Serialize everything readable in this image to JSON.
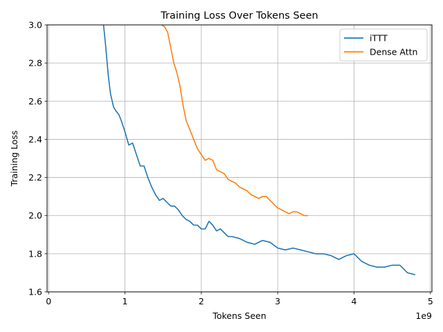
{
  "chart_data": {
    "type": "line",
    "title": "Training Loss Over Tokens Seen",
    "xlabel": "Tokens Seen",
    "ylabel": "Training Loss",
    "x_offset_label": "1e9",
    "xlim": [
      -0.02,
      5.02
    ],
    "ylim": [
      1.6,
      3.0
    ],
    "x_ticks": [
      0,
      1,
      2,
      3,
      4,
      5
    ],
    "x_tick_labels": [
      "0",
      "1",
      "2",
      "3",
      "4",
      "5"
    ],
    "y_ticks": [
      1.6,
      1.8,
      2.0,
      2.2,
      2.4,
      2.6,
      2.8,
      3.0
    ],
    "y_tick_labels": [
      "1.6",
      "1.8",
      "2.0",
      "2.2",
      "2.4",
      "2.6",
      "2.8",
      "3.0"
    ],
    "grid": true,
    "legend_position": "top-right",
    "series": [
      {
        "name": "iTTT",
        "color": "#1f77b4",
        "x": [
          0.72,
          0.75,
          0.78,
          0.81,
          0.85,
          0.88,
          0.92,
          0.95,
          1.0,
          1.05,
          1.1,
          1.15,
          1.2,
          1.25,
          1.3,
          1.35,
          1.4,
          1.45,
          1.5,
          1.55,
          1.6,
          1.65,
          1.7,
          1.75,
          1.8,
          1.85,
          1.9,
          1.95,
          2.0,
          2.05,
          2.1,
          2.15,
          2.2,
          2.25,
          2.3,
          2.35,
          2.4,
          2.5,
          2.6,
          2.7,
          2.8,
          2.9,
          3.0,
          3.1,
          3.2,
          3.3,
          3.4,
          3.5,
          3.6,
          3.7,
          3.8,
          3.9,
          4.0,
          4.1,
          4.2,
          4.3,
          4.4,
          4.5,
          4.6,
          4.7,
          4.8
        ],
        "y": [
          3.0,
          2.88,
          2.74,
          2.64,
          2.57,
          2.55,
          2.53,
          2.5,
          2.44,
          2.37,
          2.38,
          2.32,
          2.26,
          2.26,
          2.2,
          2.15,
          2.11,
          2.08,
          2.09,
          2.07,
          2.05,
          2.05,
          2.03,
          2.0,
          1.98,
          1.97,
          1.95,
          1.95,
          1.93,
          1.93,
          1.97,
          1.95,
          1.92,
          1.93,
          1.91,
          1.89,
          1.89,
          1.88,
          1.86,
          1.85,
          1.87,
          1.86,
          1.83,
          1.82,
          1.83,
          1.82,
          1.81,
          1.8,
          1.8,
          1.79,
          1.77,
          1.79,
          1.8,
          1.76,
          1.74,
          1.73,
          1.73,
          1.74,
          1.74,
          1.7,
          1.69
        ]
      },
      {
        "name": "Dense Attn",
        "color": "#ff7f0e",
        "x": [
          1.48,
          1.52,
          1.56,
          1.6,
          1.64,
          1.68,
          1.72,
          1.76,
          1.8,
          1.85,
          1.9,
          1.95,
          2.0,
          2.05,
          2.1,
          2.15,
          2.2,
          2.25,
          2.3,
          2.35,
          2.4,
          2.45,
          2.5,
          2.55,
          2.6,
          2.65,
          2.7,
          2.75,
          2.8,
          2.85,
          2.9,
          2.95,
          3.0,
          3.05,
          3.1,
          3.15,
          3.2,
          3.25,
          3.3,
          3.35,
          3.4
        ],
        "y": [
          3.0,
          2.99,
          2.96,
          2.88,
          2.8,
          2.75,
          2.68,
          2.58,
          2.5,
          2.45,
          2.4,
          2.35,
          2.32,
          2.29,
          2.3,
          2.29,
          2.24,
          2.23,
          2.22,
          2.19,
          2.18,
          2.17,
          2.15,
          2.14,
          2.13,
          2.11,
          2.1,
          2.09,
          2.1,
          2.1,
          2.08,
          2.06,
          2.04,
          2.03,
          2.02,
          2.01,
          2.02,
          2.02,
          2.01,
          2.0,
          2.0
        ]
      }
    ]
  }
}
